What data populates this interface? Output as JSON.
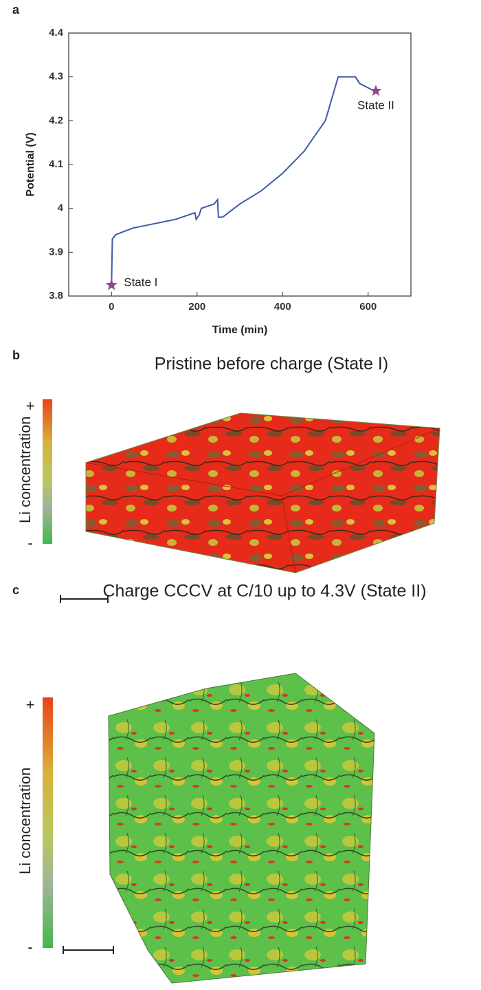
{
  "chart_data": {
    "type": "line",
    "panel_label": "a",
    "xlabel": "Time (min)",
    "ylabel": "Potential (V)",
    "xlim": [
      -100,
      700
    ],
    "xticks": [
      0,
      200,
      400,
      600
    ],
    "ylim": [
      3.8,
      4.4
    ],
    "yticks": [
      3.8,
      3.9,
      4,
      4.1,
      4.2,
      4.3,
      4.4
    ],
    "series": [
      {
        "color": "#3d5aa8",
        "x": [
          0,
          2,
          10,
          50,
          100,
          150,
          195,
          198,
          205,
          210,
          240,
          248,
          250,
          260,
          280,
          300,
          350,
          400,
          450,
          500,
          530,
          570,
          580,
          620
        ],
        "values": [
          3.82,
          3.93,
          3.94,
          3.955,
          3.965,
          3.975,
          3.99,
          3.975,
          3.985,
          4.0,
          4.01,
          4.02,
          3.98,
          3.98,
          3.995,
          4.01,
          4.04,
          4.08,
          4.13,
          4.2,
          4.3,
          4.3,
          4.285,
          4.265
        ]
      }
    ],
    "markers": [
      {
        "x": 0,
        "y": 3.825,
        "label": "State I",
        "color": "#8e4a8e"
      },
      {
        "x": 618,
        "y": 4.268,
        "label": "State II",
        "color": "#8e4a8e"
      }
    ]
  },
  "panels": {
    "b": {
      "label": "b",
      "title": "Pristine before charge (State I)",
      "colorbar_max": "+",
      "colorbar_min": "-",
      "colorbar_label": "Li concentration"
    },
    "c": {
      "label": "c",
      "title": "Charge CCCV at C/10 up to 4.3V (State II)",
      "colorbar_max": "+",
      "colorbar_min": "-",
      "colorbar_label": "Li concentration"
    }
  }
}
